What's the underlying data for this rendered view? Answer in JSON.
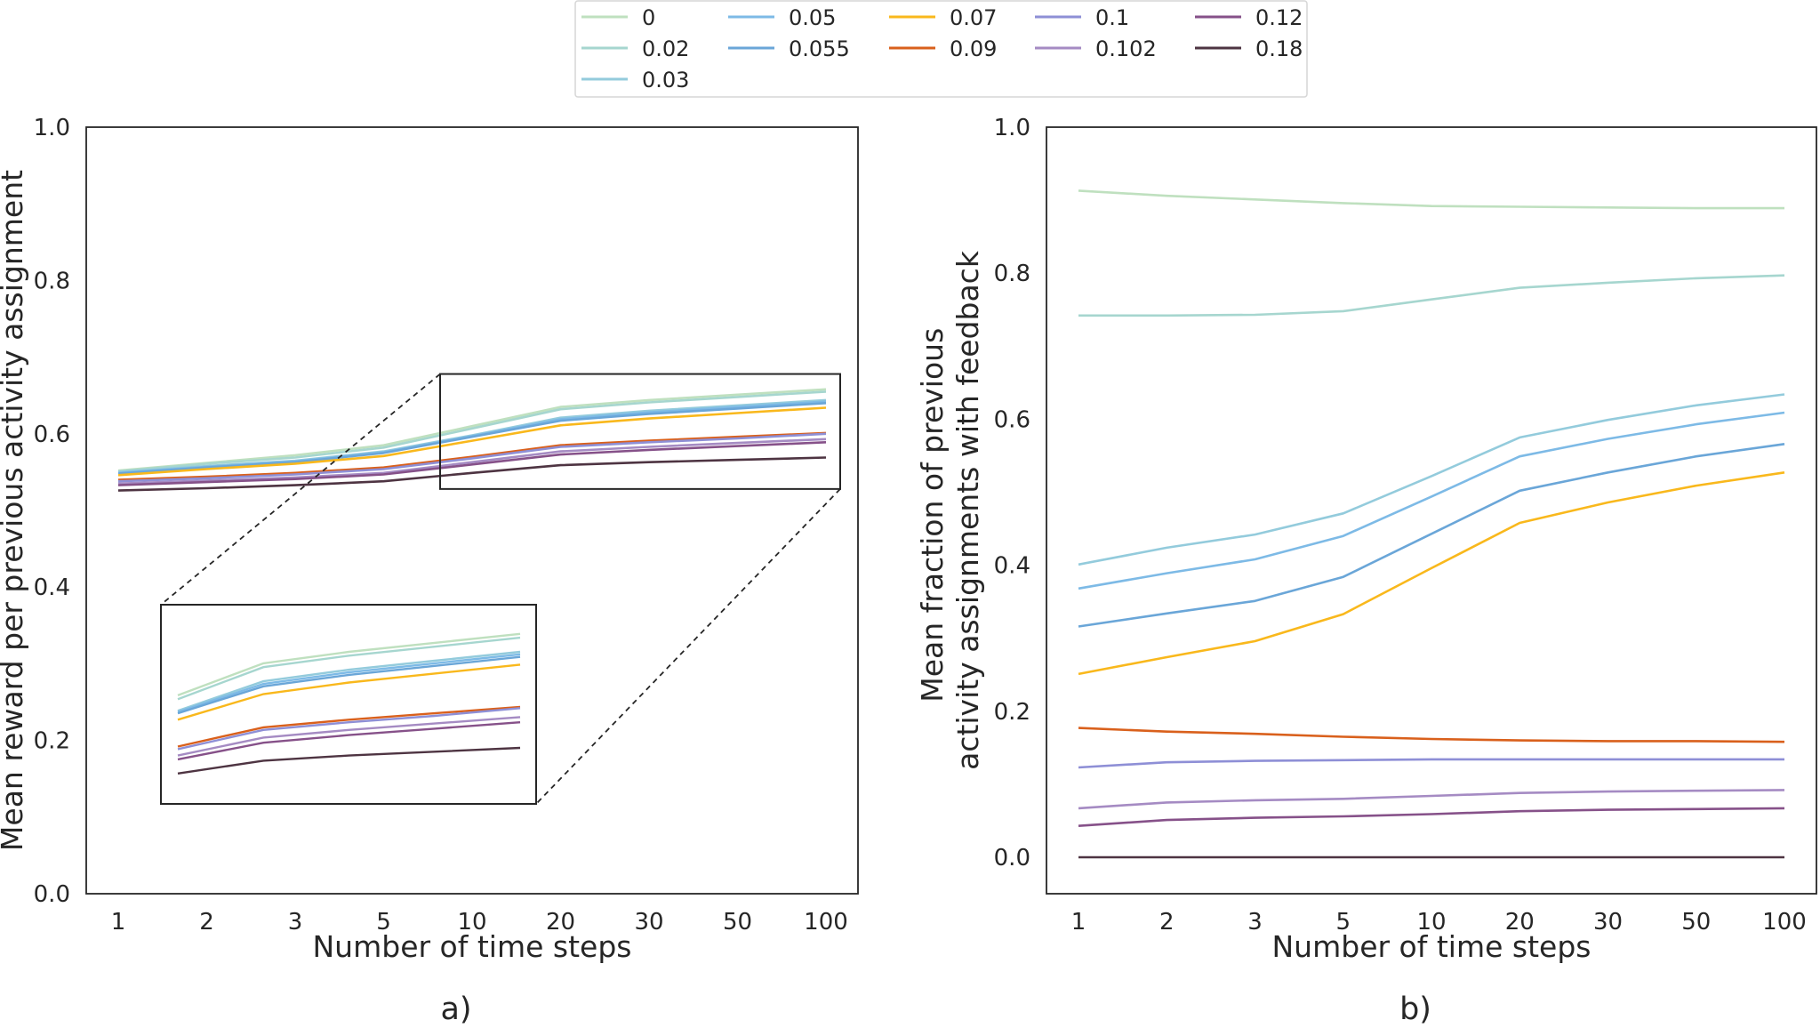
{
  "legend": {
    "placement": "top-center",
    "entries": [
      {
        "label": "0",
        "color": "#bfe0bf"
      },
      {
        "label": "0.02",
        "color": "#a6d6cf"
      },
      {
        "label": "0.03",
        "color": "#93cbdc"
      },
      {
        "label": "0.05",
        "color": "#7dbae6"
      },
      {
        "label": "0.055",
        "color": "#6aa6d8"
      },
      {
        "label": "0.07",
        "color": "#f9b81c"
      },
      {
        "label": "0.09",
        "color": "#d9601c"
      },
      {
        "label": "0.1",
        "color": "#8e8fd6"
      },
      {
        "label": "0.102",
        "color": "#a58bc3"
      },
      {
        "label": "0.12",
        "color": "#865189"
      },
      {
        "label": "0.18",
        "color": "#4e3442"
      }
    ]
  },
  "chart_data": [
    {
      "type": "line",
      "panel_label": "a)",
      "xlabel": "Number of time steps",
      "ylabel": "Mean reward per previous activity assignment",
      "categories": [
        "1",
        "2",
        "3",
        "5",
        "10",
        "20",
        "30",
        "50",
        "100"
      ],
      "ylim": [
        0,
        1
      ],
      "yticks": [
        "0.0",
        "0.2",
        "0.4",
        "0.6",
        "0.8",
        "1.0"
      ],
      "grid": false,
      "inset_zoom": {
        "x_range": [
          "10",
          "100"
        ],
        "y_range": [
          0.528,
          0.678
        ]
      },
      "series": [
        {
          "legend_ref": "0",
          "values": [
            0.552,
            0.562,
            0.572,
            0.585,
            0.61,
            0.635,
            0.644,
            0.651,
            0.658
          ]
        },
        {
          "legend_ref": "0.02",
          "values": [
            0.551,
            0.561,
            0.569,
            0.582,
            0.607,
            0.632,
            0.641,
            0.648,
            0.655
          ]
        },
        {
          "legend_ref": "0.03",
          "values": [
            0.55,
            0.558,
            0.565,
            0.577,
            0.598,
            0.621,
            0.63,
            0.637,
            0.644
          ]
        },
        {
          "legend_ref": "0.05",
          "values": [
            0.549,
            0.557,
            0.564,
            0.576,
            0.597,
            0.619,
            0.628,
            0.635,
            0.642
          ]
        },
        {
          "legend_ref": "0.055",
          "values": [
            0.548,
            0.556,
            0.563,
            0.575,
            0.596,
            0.617,
            0.626,
            0.633,
            0.64
          ]
        },
        {
          "legend_ref": "0.07",
          "values": [
            0.546,
            0.554,
            0.561,
            0.571,
            0.591,
            0.611,
            0.62,
            0.627,
            0.634
          ]
        },
        {
          "legend_ref": "0.09",
          "values": [
            0.54,
            0.544,
            0.549,
            0.556,
            0.57,
            0.585,
            0.591,
            0.596,
            0.601
          ]
        },
        {
          "legend_ref": "0.1",
          "values": [
            0.538,
            0.542,
            0.547,
            0.554,
            0.568,
            0.583,
            0.589,
            0.594,
            0.6
          ]
        },
        {
          "legend_ref": "0.102",
          "values": [
            0.535,
            0.539,
            0.543,
            0.549,
            0.563,
            0.577,
            0.583,
            0.588,
            0.593
          ]
        },
        {
          "legend_ref": "0.12",
          "values": [
            0.533,
            0.537,
            0.541,
            0.547,
            0.56,
            0.573,
            0.579,
            0.584,
            0.589
          ]
        },
        {
          "legend_ref": "0.18",
          "values": [
            0.526,
            0.529,
            0.533,
            0.538,
            0.549,
            0.559,
            0.563,
            0.566,
            0.569
          ]
        }
      ]
    },
    {
      "type": "line",
      "panel_label": "b)",
      "xlabel": "Number of time steps",
      "ylabel": "Mean fraction of previous\nactivity assignments with feedback",
      "categories": [
        "1",
        "2",
        "3",
        "5",
        "10",
        "20",
        "30",
        "50",
        "100"
      ],
      "ylim": [
        -0.05,
        1.0
      ],
      "yticks": [
        "0.0",
        "0.2",
        "0.4",
        "0.6",
        "0.8",
        "1.0"
      ],
      "grid": false,
      "series": [
        {
          "legend_ref": "0",
          "values": [
            0.913,
            0.906,
            0.901,
            0.896,
            0.892,
            0.891,
            0.89,
            0.889,
            0.889
          ]
        },
        {
          "legend_ref": "0.02",
          "values": [
            0.742,
            0.742,
            0.743,
            0.748,
            0.764,
            0.78,
            0.787,
            0.793,
            0.797
          ]
        },
        {
          "legend_ref": "0.03",
          "values": [
            0.401,
            0.424,
            0.442,
            0.471,
            0.522,
            0.575,
            0.599,
            0.619,
            0.634
          ]
        },
        {
          "legend_ref": "0.05",
          "values": [
            0.368,
            0.389,
            0.408,
            0.44,
            0.494,
            0.549,
            0.573,
            0.593,
            0.609
          ]
        },
        {
          "legend_ref": "0.055",
          "values": [
            0.316,
            0.334,
            0.351,
            0.384,
            0.443,
            0.502,
            0.527,
            0.549,
            0.566
          ]
        },
        {
          "legend_ref": "0.07",
          "values": [
            0.251,
            0.274,
            0.296,
            0.333,
            0.396,
            0.458,
            0.486,
            0.509,
            0.527
          ]
        },
        {
          "legend_ref": "0.09",
          "values": [
            0.177,
            0.172,
            0.169,
            0.165,
            0.162,
            0.16,
            0.159,
            0.159,
            0.158
          ]
        },
        {
          "legend_ref": "0.1",
          "values": [
            0.123,
            0.13,
            0.132,
            0.133,
            0.134,
            0.134,
            0.134,
            0.134,
            0.134
          ]
        },
        {
          "legend_ref": "0.102",
          "values": [
            0.067,
            0.075,
            0.078,
            0.08,
            0.084,
            0.088,
            0.09,
            0.091,
            0.092
          ]
        },
        {
          "legend_ref": "0.12",
          "values": [
            0.043,
            0.051,
            0.054,
            0.056,
            0.059,
            0.063,
            0.065,
            0.066,
            0.067
          ]
        },
        {
          "legend_ref": "0.18",
          "values": [
            0.0,
            0.0,
            0.0,
            0.0,
            0.0,
            0.0,
            0.0,
            0.0,
            0.0
          ]
        }
      ]
    }
  ]
}
